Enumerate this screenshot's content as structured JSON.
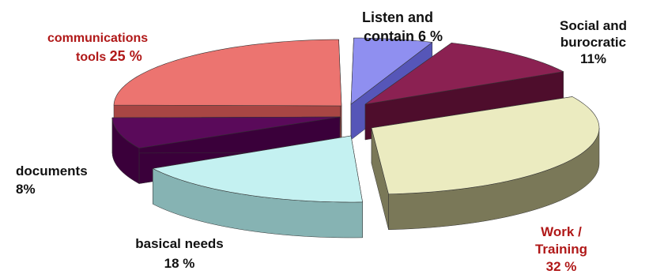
{
  "chart_data": {
    "type": "pie",
    "style": "3d-exploded",
    "slices": [
      {
        "label": "Listen and contain",
        "value": 6,
        "label_lines": [
          "Listen and",
          "contain  6 %"
        ],
        "colors": {
          "top": "#8f8ff0",
          "side": "#5656b8"
        }
      },
      {
        "label": "Social and burocratic",
        "value": 11,
        "label_lines": [
          "Social and",
          "burocratic",
          "11%"
        ],
        "colors": {
          "top": "#8b2152",
          "side": "#4e0d2c"
        }
      },
      {
        "label": "Work / Training",
        "value": 32,
        "label_lines": [
          "Work /",
          "Training",
          "32  %"
        ],
        "colors": {
          "top": "#ebebc0",
          "side": "#7a7858"
        }
      },
      {
        "label": "basical needs",
        "value": 18,
        "label_lines": [
          "basical  needs",
          "18 %"
        ],
        "colors": {
          "top": "#c4f1f1",
          "side": "#86b3b3"
        }
      },
      {
        "label": "documents",
        "value": 8,
        "label_lines": [
          "documents",
          "8%"
        ],
        "colors": {
          "top": "#5a0a5a",
          "side": "#3a003a"
        }
      },
      {
        "label": "communications tools",
        "value": 25,
        "label_lines": [
          "communications",
          "tools",
          "25 %"
        ],
        "colors": {
          "top": "#ec7470",
          "side": "#a84644"
        }
      }
    ]
  }
}
